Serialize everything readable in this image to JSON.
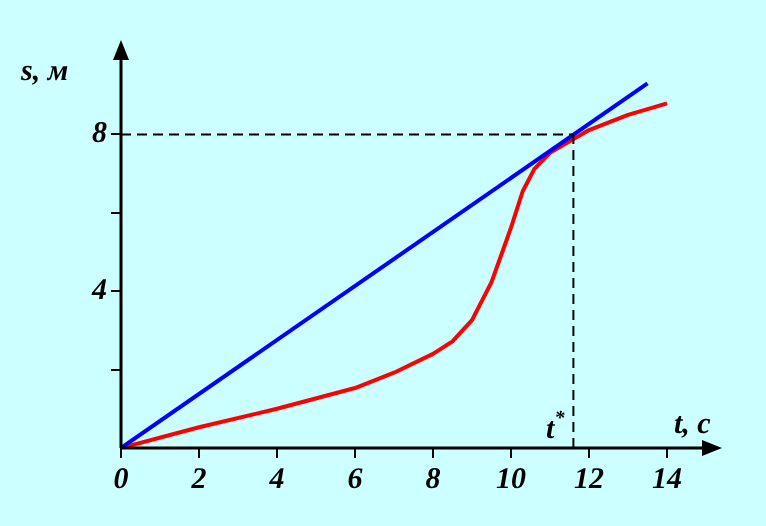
{
  "chart_data": {
    "type": "line",
    "xlabel": "t, c",
    "ylabel": "s, м",
    "xlim": [
      0,
      15
    ],
    "ylim": [
      0,
      10
    ],
    "xticks": [
      0,
      2,
      4,
      6,
      8,
      10,
      12,
      14
    ],
    "yticks": [
      {
        "value": 2,
        "label": null
      },
      4,
      {
        "value": 6,
        "label": null
      },
      8
    ],
    "series": [
      {
        "color": "#0000ff",
        "x": [
          0,
          13.5
        ],
        "values": [
          0,
          9.3
        ]
      },
      {
        "color": "#ff0000",
        "x": [
          0,
          2,
          4,
          6,
          7,
          8,
          8.5,
          9,
          9.5,
          10,
          10.3,
          10.6,
          11,
          11.6,
          12,
          13,
          14
        ],
        "values": [
          0,
          0.53,
          1.0,
          1.53,
          1.92,
          2.4,
          2.72,
          3.26,
          4.23,
          5.62,
          6.55,
          7.12,
          7.53,
          7.88,
          8.11,
          8.5,
          8.79
        ]
      }
    ],
    "ref_lines": [
      {
        "axis": "y",
        "value": 8,
        "line_style": "dashed"
      },
      {
        "axis": "x",
        "value": 11.6,
        "label": "t$^{*}$",
        "line_style": "dashed"
      }
    ],
    "grid": false,
    "legend": false,
    "marker": "none",
    "line_style": "solid"
  }
}
